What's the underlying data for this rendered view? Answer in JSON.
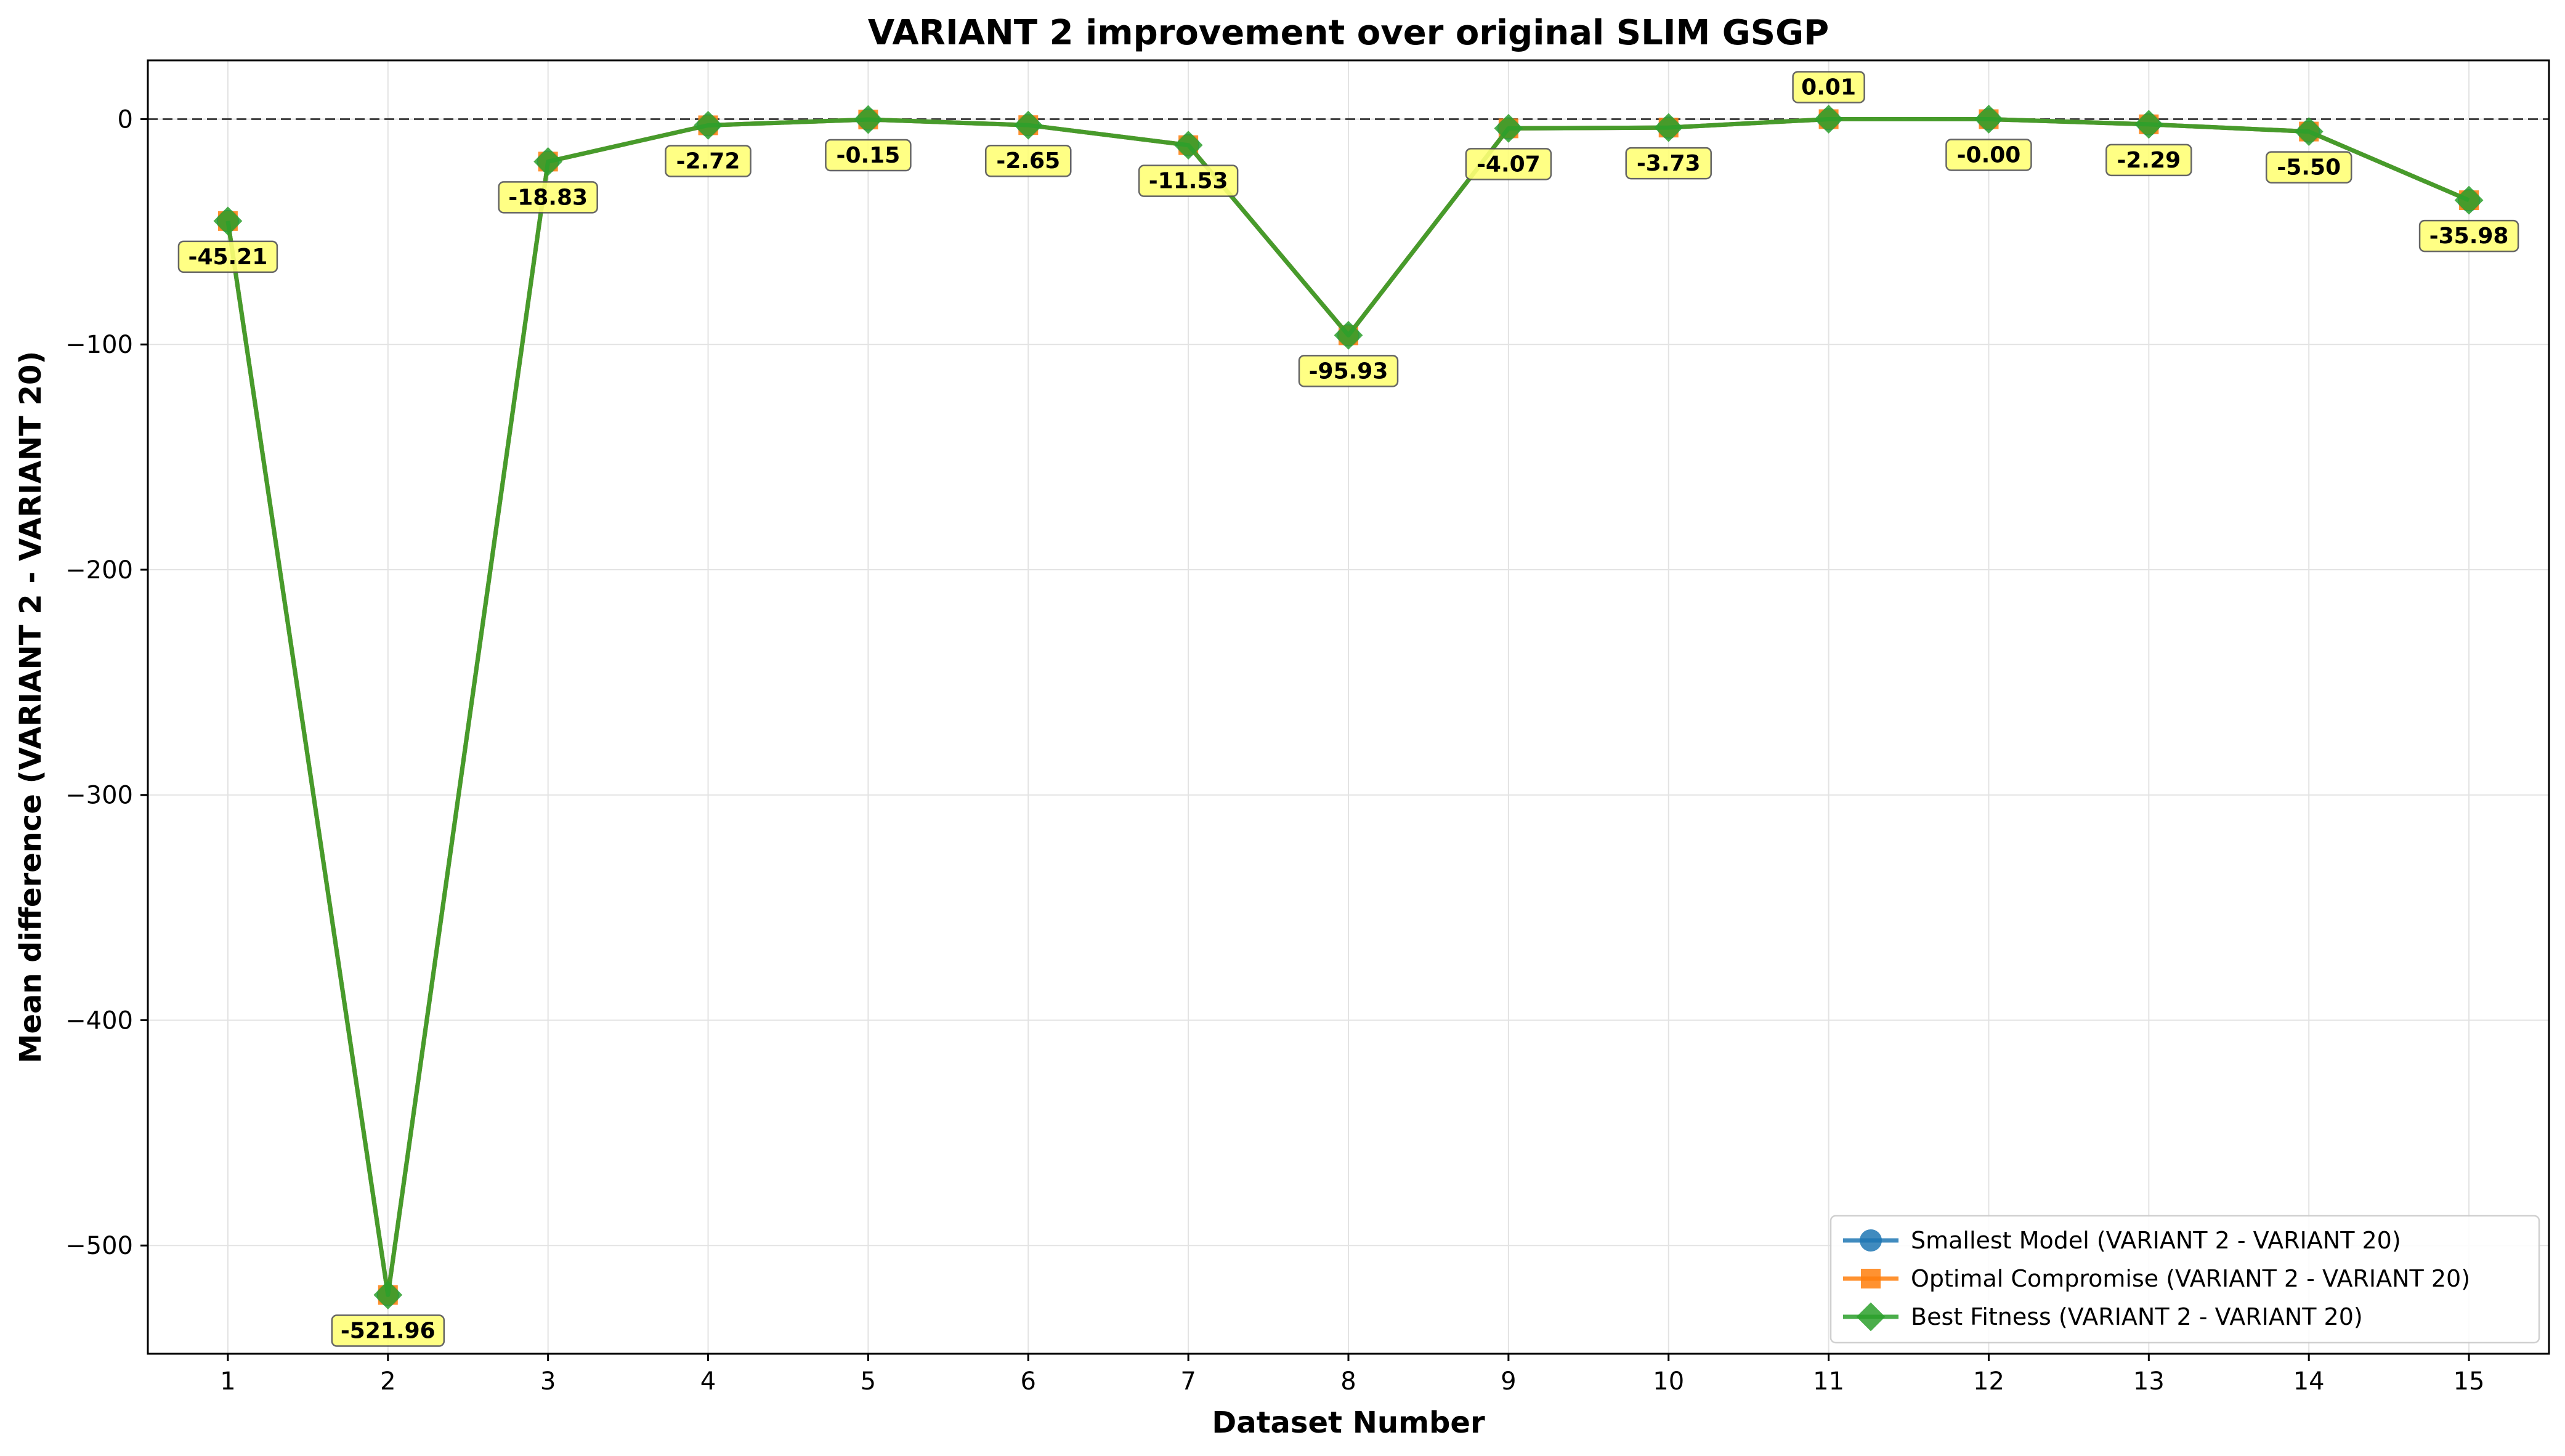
{
  "chart_data": {
    "type": "line",
    "title": "VARIANT 2 improvement over original SLIM GSGP",
    "xlabel": "Dataset Number",
    "ylabel": "Mean difference (VARIANT 2 - VARIANT 20)",
    "x": [
      1,
      2,
      3,
      4,
      5,
      6,
      7,
      8,
      9,
      10,
      11,
      12,
      13,
      14,
      15
    ],
    "xlim": [
      0.5,
      15.5
    ],
    "ylim": [
      -548.06,
      26.11
    ],
    "yticks": [
      0,
      -100,
      -200,
      -300,
      -400,
      -500
    ],
    "ytick_labels": [
      "0",
      "−100",
      "−200",
      "−300",
      "−400",
      "−500"
    ],
    "grid": true,
    "reference_line": 0,
    "legend_position": "lower-right",
    "series": [
      {
        "name": "Smallest Model (VARIANT 2 - VARIANT 20)",
        "marker": "circle",
        "color": "#1f77b4",
        "values": [
          -45.21,
          -521.96,
          -18.83,
          -2.72,
          -0.15,
          -2.65,
          -11.53,
          -95.93,
          -4.07,
          -3.73,
          0.01,
          -0.0,
          -2.29,
          -5.5,
          -35.98
        ]
      },
      {
        "name": "Optimal Compromise (VARIANT 2 - VARIANT 20)",
        "marker": "square",
        "color": "#ff7f0e",
        "values": [
          -45.21,
          -521.96,
          -18.83,
          -2.72,
          -0.15,
          -2.65,
          -11.53,
          -95.93,
          -4.07,
          -3.73,
          0.01,
          -0.0,
          -2.29,
          -5.5,
          -35.98
        ]
      },
      {
        "name": "Best Fitness (VARIANT 2 - VARIANT 20)",
        "marker": "diamond",
        "color": "#2ca02c",
        "values": [
          -45.21,
          -521.96,
          -18.83,
          -2.72,
          -0.15,
          -2.65,
          -11.53,
          -95.93,
          -4.07,
          -3.73,
          0.01,
          -0.0,
          -2.29,
          -5.5,
          -35.98
        ]
      }
    ],
    "data_labels": [
      "-45.21",
      "-521.96",
      "-18.83",
      "-2.72",
      "-0.15",
      "-2.65",
      "-11.53",
      "-95.93",
      "-4.07",
      "-3.73",
      "0.01",
      "-0.00",
      "-2.29",
      "-5.50",
      "-35.98"
    ],
    "label_color": "#ffff77"
  }
}
